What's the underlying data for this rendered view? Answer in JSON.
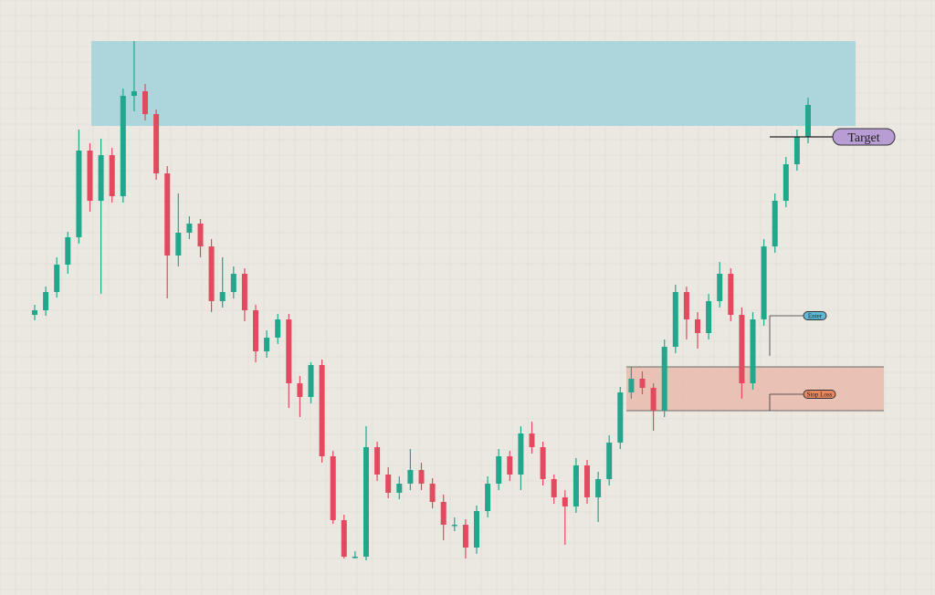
{
  "chart_data": {
    "type": "candlestick",
    "up_color": "#22a68c",
    "down_color": "#e24a5f",
    "ylim": [
      0,
      652
    ],
    "open": [
      307,
      312,
      332,
      362,
      392,
      487,
      432,
      482,
      437,
      547,
      552,
      527,
      462,
      372,
      397,
      407,
      382,
      322,
      332,
      352,
      312,
      267,
      282,
      302,
      232,
      217,
      252,
      152,
      82,
      42,
      42,
      162,
      132,
      112,
      122,
      137,
      122,
      102,
      77,
      77,
      52,
      92,
      122,
      152,
      132,
      177,
      162,
      127,
      107,
      97,
      142,
      107,
      127,
      167,
      222,
      237,
      227,
      202,
      272,
      332,
      302,
      287,
      322,
      352,
      307,
      232,
      302,
      382,
      432,
      472,
      502
    ],
    "close": [
      312,
      332,
      362,
      392,
      487,
      432,
      482,
      437,
      547,
      552,
      527,
      462,
      372,
      397,
      407,
      382,
      322,
      332,
      352,
      312,
      267,
      282,
      302,
      232,
      217,
      252,
      152,
      82,
      42,
      42,
      162,
      132,
      112,
      122,
      137,
      122,
      102,
      77,
      77,
      52,
      92,
      122,
      152,
      132,
      177,
      162,
      127,
      107,
      97,
      142,
      107,
      127,
      167,
      222,
      237,
      227,
      202,
      272,
      332,
      302,
      287,
      322,
      352,
      307,
      232,
      302,
      382,
      432,
      472,
      502,
      537
    ],
    "high": [
      318,
      338,
      370,
      398,
      510,
      495,
      500,
      490,
      555,
      607,
      560,
      532,
      470,
      440,
      415,
      412,
      390,
      370,
      360,
      358,
      318,
      290,
      308,
      308,
      240,
      255,
      258,
      158,
      88,
      48,
      185,
      168,
      140,
      130,
      160,
      145,
      128,
      110,
      85,
      83,
      98,
      130,
      160,
      158,
      185,
      190,
      168,
      132,
      115,
      150,
      148,
      135,
      175,
      228,
      250,
      245,
      232,
      280,
      340,
      338,
      310,
      330,
      365,
      358,
      315,
      310,
      390,
      440,
      480,
      510,
      545
    ],
    "low": [
      301,
      306,
      326,
      352,
      385,
      420,
      330,
      430,
      430,
      530,
      520,
      455,
      325,
      360,
      390,
      370,
      310,
      315,
      325,
      300,
      255,
      260,
      275,
      205,
      195,
      210,
      145,
      78,
      40,
      40,
      38,
      125,
      106,
      105,
      115,
      115,
      95,
      60,
      70,
      40,
      45,
      85,
      115,
      125,
      115,
      155,
      120,
      100,
      55,
      90,
      100,
      80,
      120,
      160,
      215,
      220,
      180,
      195,
      265,
      280,
      270,
      280,
      315,
      300,
      215,
      225,
      295,
      375,
      425,
      465,
      495
    ],
    "target_zone": [
      514,
      607
    ],
    "entry_zone": [
      202,
      250
    ],
    "annotations": [
      {
        "label": "Target",
        "value": 502
      },
      {
        "label": "Enter",
        "value": 306
      },
      {
        "label": "Stop Loss",
        "value": 220
      }
    ]
  }
}
